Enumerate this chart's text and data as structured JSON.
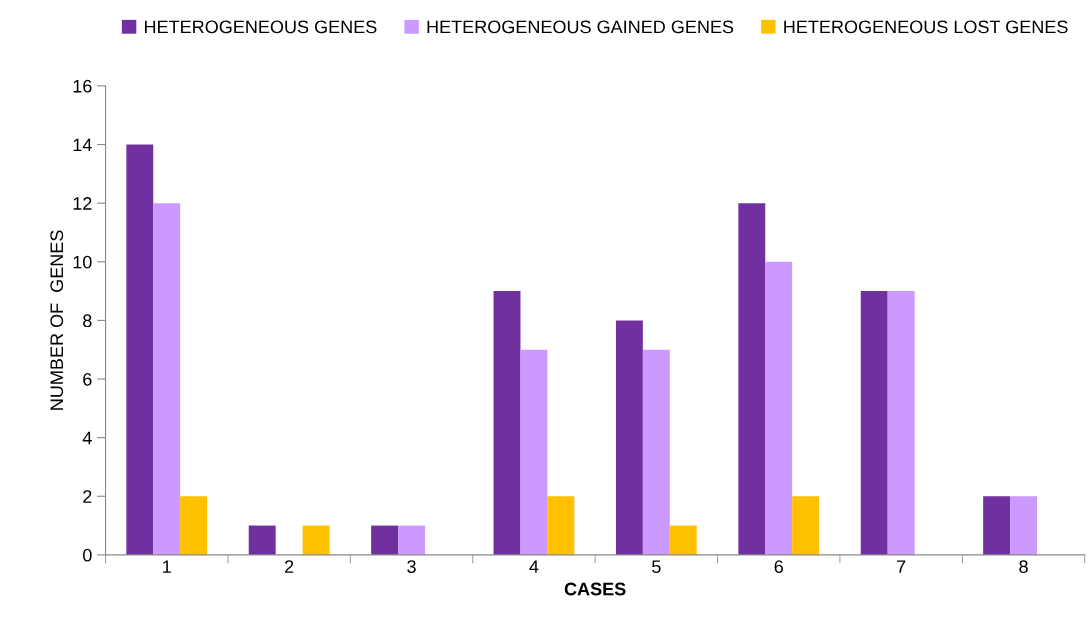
{
  "chart_data": {
    "type": "bar",
    "xlabel": "CASES",
    "ylabel": "NUMBER OF  GENES",
    "categories": [
      "1",
      "2",
      "3",
      "4",
      "5",
      "6",
      "7",
      "8"
    ],
    "series": [
      {
        "name": "HETEROGENEOUS GENES",
        "color": "#7030a0",
        "values": [
          14,
          1,
          1,
          9,
          8,
          12,
          9,
          2
        ]
      },
      {
        "name": "HETEROGENEOUS GAINED GENES",
        "color": "#cc99ff",
        "values": [
          12,
          0,
          1,
          7,
          7,
          10,
          9,
          2
        ]
      },
      {
        "name": "HETEROGENEOUS LOST GENES",
        "color": "#ffc000",
        "values": [
          2,
          1,
          0,
          2,
          1,
          2,
          0,
          0
        ]
      }
    ],
    "ylim": [
      0,
      16
    ],
    "yticks": [
      0,
      2,
      4,
      6,
      8,
      10,
      12,
      14,
      16
    ],
    "grid": false,
    "legend": "top"
  }
}
